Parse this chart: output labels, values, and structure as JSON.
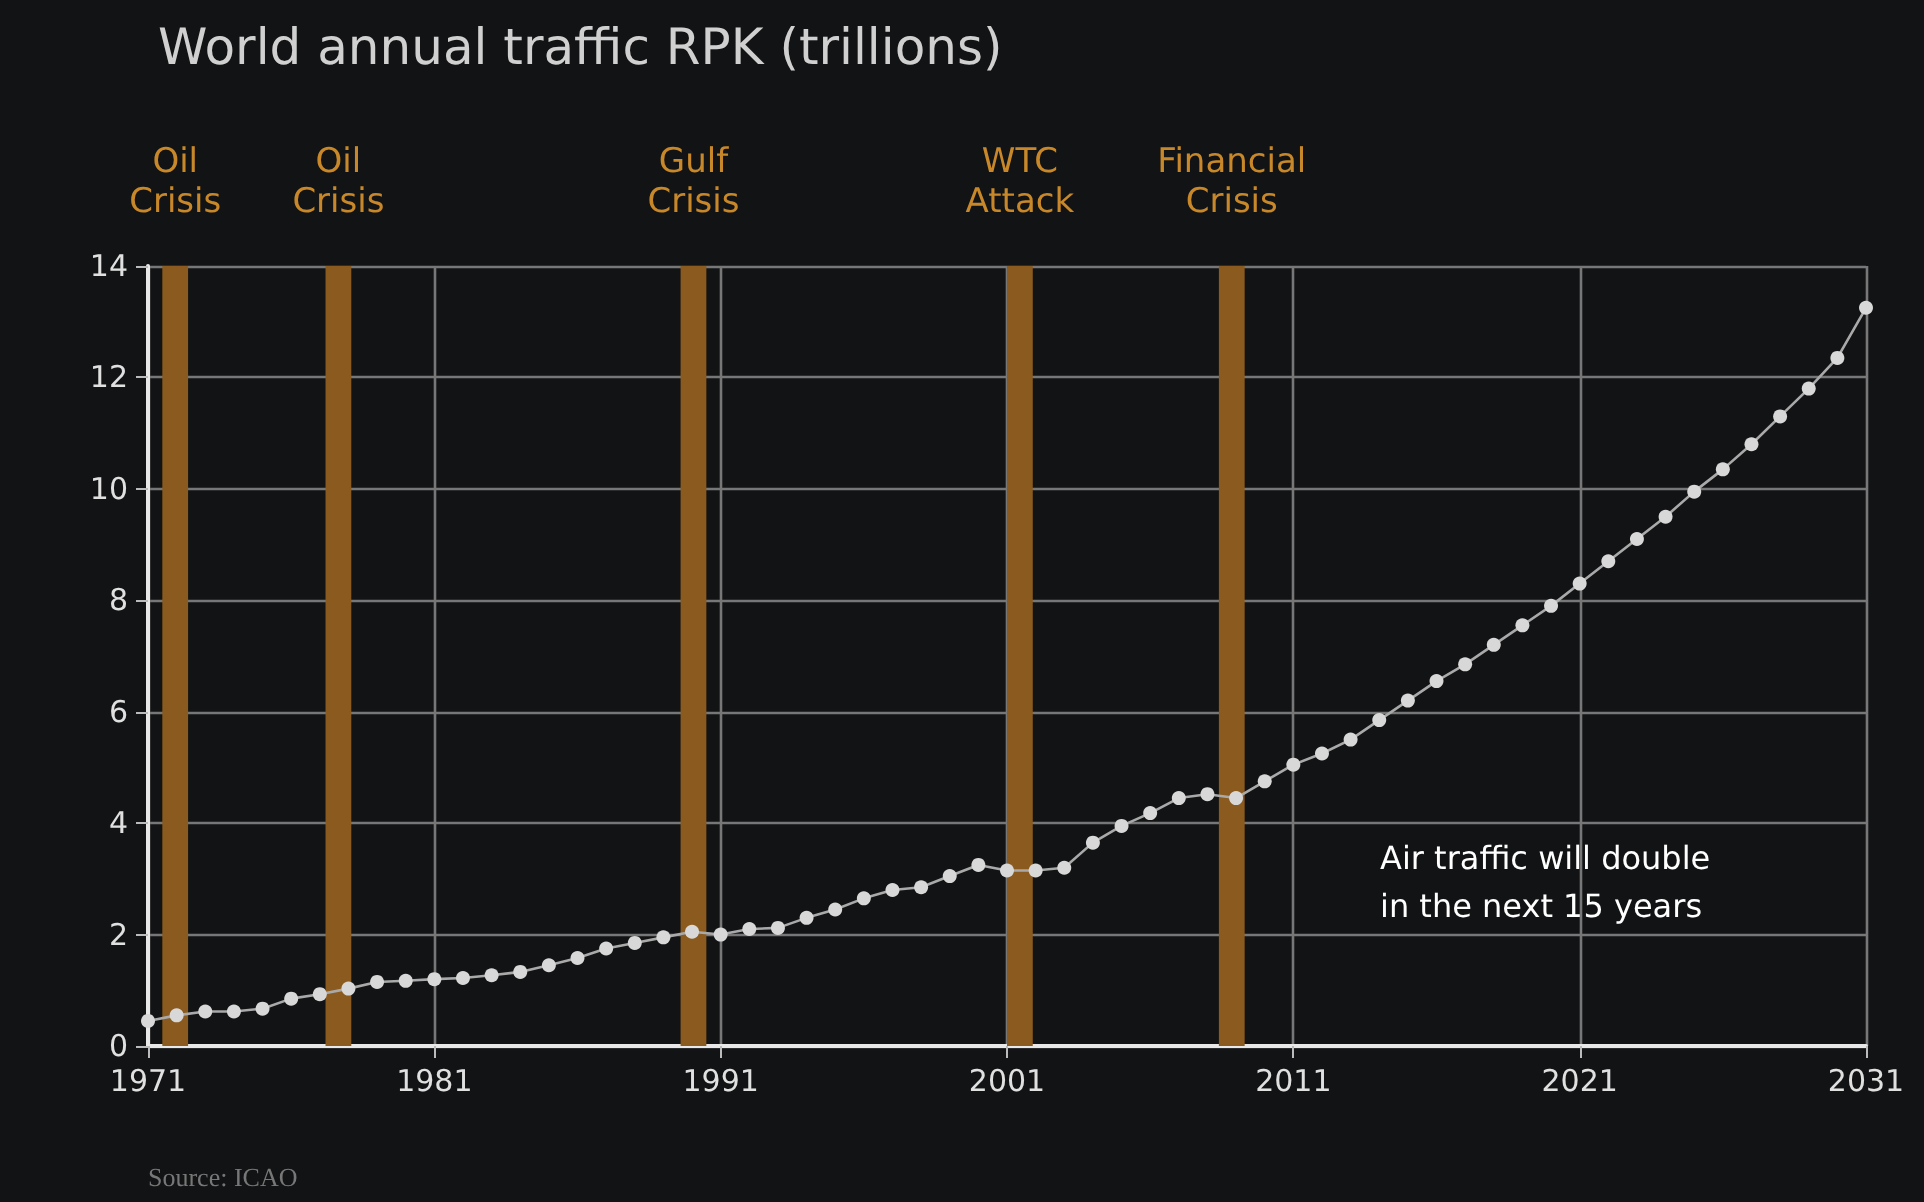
{
  "chart_data": {
    "type": "line",
    "title": "World annual traffic RPK (trillions)",
    "x": [
      1971,
      1972,
      1973,
      1974,
      1975,
      1976,
      1977,
      1978,
      1979,
      1980,
      1981,
      1982,
      1983,
      1984,
      1985,
      1986,
      1987,
      1988,
      1989,
      1990,
      1991,
      1992,
      1993,
      1994,
      1995,
      1996,
      1997,
      1998,
      1999,
      2000,
      2001,
      2002,
      2003,
      2004,
      2005,
      2006,
      2007,
      2008,
      2009,
      2010,
      2011,
      2012,
      2013,
      2014,
      2015,
      2016,
      2017,
      2018,
      2019,
      2020,
      2021,
      2022,
      2023,
      2024,
      2025,
      2026,
      2027,
      2028,
      2029,
      2030,
      2031
    ],
    "series": [
      {
        "color": "#d8d8d8",
        "values": [
          0.45,
          0.55,
          0.62,
          0.62,
          0.67,
          0.85,
          0.93,
          1.03,
          1.15,
          1.17,
          1.2,
          1.22,
          1.27,
          1.33,
          1.45,
          1.58,
          1.75,
          1.85,
          1.95,
          2.05,
          2.0,
          2.1,
          2.12,
          2.3,
          2.45,
          2.65,
          2.8,
          2.85,
          3.05,
          3.25,
          3.15,
          3.15,
          3.2,
          3.65,
          3.95,
          4.18,
          4.45,
          4.52,
          4.45,
          4.75,
          5.05,
          5.25,
          5.5,
          5.85,
          6.2,
          6.55,
          6.85,
          7.2,
          7.55,
          7.9,
          8.3,
          8.7,
          9.1,
          9.5,
          9.95,
          10.35,
          10.8,
          11.3,
          11.8,
          12.35,
          13.25
        ]
      }
    ],
    "xlim": [
      1971,
      2031
    ],
    "xticks": [
      1971,
      1981,
      1991,
      2001,
      2011,
      2021,
      2031
    ],
    "ylim": [
      0,
      14
    ],
    "yticks": [
      0,
      2,
      4,
      6,
      8,
      10,
      12,
      14
    ],
    "grid": true,
    "marker": "circle",
    "line_style": "solid",
    "bands": [
      {
        "axis": "x",
        "from": 1971.5,
        "to": 1972.4,
        "label": "Oil\nCrisis",
        "color": "#8a5a1e"
      },
      {
        "axis": "x",
        "from": 1977.2,
        "to": 1978.1,
        "label": "Oil\nCrisis",
        "color": "#8a5a1e"
      },
      {
        "axis": "x",
        "from": 1989.6,
        "to": 1990.5,
        "label": "Gulf\nCrisis",
        "color": "#8a5a1e"
      },
      {
        "axis": "x",
        "from": 2001.0,
        "to": 2001.9,
        "label": "WTC\nAttack",
        "color": "#8a5a1e"
      },
      {
        "axis": "x",
        "from": 2008.4,
        "to": 2009.3,
        "label": "Financial\nCrisis",
        "color": "#8a5a1e"
      }
    ],
    "annotations": [
      "Air traffic will double\nin the next 15 years",
      "Source: ICAO"
    ]
  }
}
